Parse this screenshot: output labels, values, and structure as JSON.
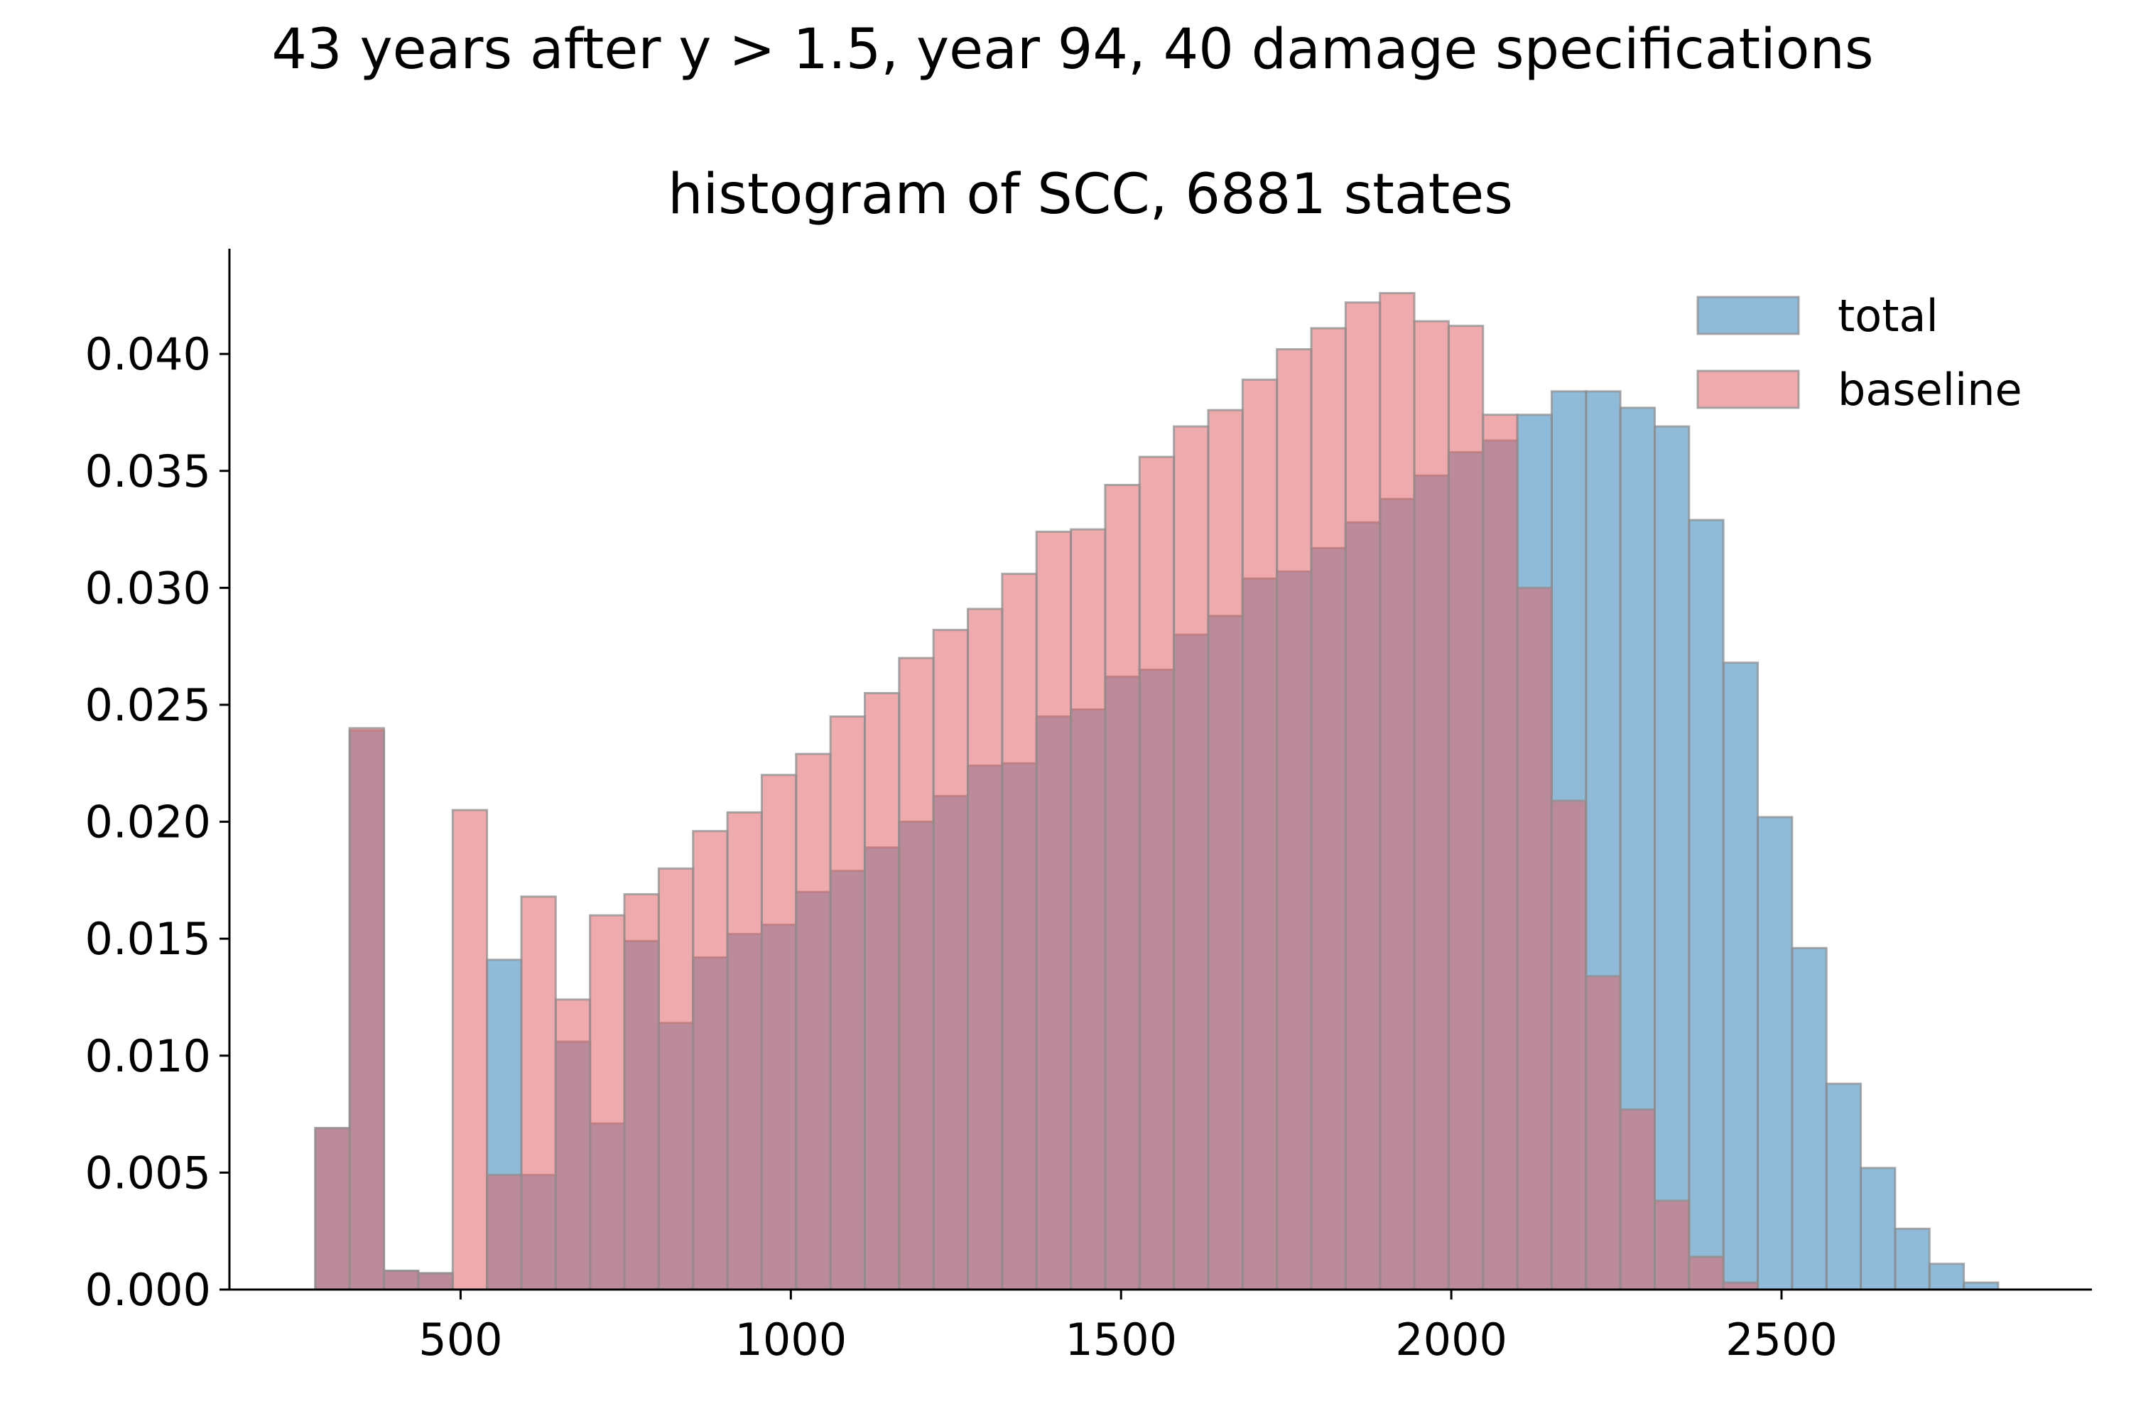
{
  "suptitle": "43 years after y > 1.5, year 94, 40 damage specifications",
  "chart_data": {
    "type": "histogram",
    "title": "histogram of SCC, 6881 states",
    "xlabel": "",
    "ylabel": "",
    "xlim": [
      150,
      2970
    ],
    "ylim": [
      0,
      0.0445
    ],
    "grid": false,
    "legend_position": "top-right",
    "x_ticks": [
      500,
      1000,
      1500,
      2000,
      2500
    ],
    "x_tick_labels": [
      "500",
      "1000",
      "1500",
      "2000",
      "2500"
    ],
    "y_ticks": [
      0,
      0.005,
      0.01,
      0.015,
      0.02,
      0.025,
      0.03,
      0.035,
      0.04
    ],
    "y_tick_labels": [
      "0.000",
      "0.005",
      "0.010",
      "0.015",
      "0.020",
      "0.025",
      "0.030",
      "0.035",
      "0.040"
    ],
    "series": [
      {
        "name": "total",
        "color": "#1f77b4",
        "opacity": 0.5,
        "bins": [
          [
            280,
            332,
            0.0069
          ],
          [
            332,
            384,
            0.0239
          ],
          [
            384,
            436,
            0.0008
          ],
          [
            436,
            488,
            0.0007
          ],
          [
            488,
            540,
            0.0
          ],
          [
            540,
            592,
            0.0141
          ],
          [
            592,
            644,
            0.0049
          ],
          [
            644,
            696,
            0.0106
          ],
          [
            696,
            748,
            0.0071
          ],
          [
            748,
            800,
            0.0149
          ],
          [
            800,
            852,
            0.0114
          ],
          [
            852,
            904,
            0.0142
          ],
          [
            904,
            956,
            0.0152
          ],
          [
            956,
            1008,
            0.0156
          ],
          [
            1008,
            1060,
            0.017
          ],
          [
            1060,
            1112,
            0.0179
          ],
          [
            1112,
            1164,
            0.0189
          ],
          [
            1164,
            1216,
            0.02
          ],
          [
            1216,
            1268,
            0.0211
          ],
          [
            1268,
            1320,
            0.0224
          ],
          [
            1320,
            1372,
            0.0225
          ],
          [
            1372,
            1424,
            0.0245
          ],
          [
            1424,
            1476,
            0.0248
          ],
          [
            1476,
            1528,
            0.0262
          ],
          [
            1528,
            1580,
            0.0265
          ],
          [
            1580,
            1632,
            0.028
          ],
          [
            1632,
            1684,
            0.0288
          ],
          [
            1684,
            1736,
            0.0304
          ],
          [
            1736,
            1788,
            0.0307
          ],
          [
            1788,
            1840,
            0.0317
          ],
          [
            1840,
            1892,
            0.0328
          ],
          [
            1892,
            1944,
            0.0338
          ],
          [
            1944,
            1996,
            0.0348
          ],
          [
            1996,
            2048,
            0.0358
          ],
          [
            2048,
            2100,
            0.0363
          ],
          [
            2100,
            2152,
            0.0374
          ],
          [
            2152,
            2204,
            0.0384
          ],
          [
            2204,
            2256,
            0.0384
          ],
          [
            2256,
            2308,
            0.0377
          ],
          [
            2308,
            2360,
            0.0369
          ],
          [
            2360,
            2412,
            0.0329
          ],
          [
            2412,
            2464,
            0.0268
          ],
          [
            2464,
            2516,
            0.0202
          ],
          [
            2516,
            2568,
            0.0146
          ],
          [
            2568,
            2620,
            0.0088
          ],
          [
            2620,
            2672,
            0.0052
          ],
          [
            2672,
            2724,
            0.0026
          ],
          [
            2724,
            2776,
            0.0011
          ],
          [
            2776,
            2828,
            0.0003
          ]
        ]
      },
      {
        "name": "baseline",
        "color": "#e06468",
        "opacity": 0.55,
        "bins": [
          [
            280,
            332,
            0.0069
          ],
          [
            332,
            384,
            0.024
          ],
          [
            384,
            436,
            0.0008
          ],
          [
            436,
            488,
            0.0007
          ],
          [
            488,
            540,
            0.0205
          ],
          [
            540,
            592,
            0.0049
          ],
          [
            592,
            644,
            0.0168
          ],
          [
            644,
            696,
            0.0124
          ],
          [
            696,
            748,
            0.016
          ],
          [
            748,
            800,
            0.0169
          ],
          [
            800,
            852,
            0.018
          ],
          [
            852,
            904,
            0.0196
          ],
          [
            904,
            956,
            0.0204
          ],
          [
            956,
            1008,
            0.022
          ],
          [
            1008,
            1060,
            0.0229
          ],
          [
            1060,
            1112,
            0.0245
          ],
          [
            1112,
            1164,
            0.0255
          ],
          [
            1164,
            1216,
            0.027
          ],
          [
            1216,
            1268,
            0.0282
          ],
          [
            1268,
            1320,
            0.0291
          ],
          [
            1320,
            1372,
            0.0306
          ],
          [
            1372,
            1424,
            0.0324
          ],
          [
            1424,
            1476,
            0.0325
          ],
          [
            1476,
            1528,
            0.0344
          ],
          [
            1528,
            1580,
            0.0356
          ],
          [
            1580,
            1632,
            0.0369
          ],
          [
            1632,
            1684,
            0.0376
          ],
          [
            1684,
            1736,
            0.0389
          ],
          [
            1736,
            1788,
            0.0402
          ],
          [
            1788,
            1840,
            0.0411
          ],
          [
            1840,
            1892,
            0.0422
          ],
          [
            1892,
            1944,
            0.0426
          ],
          [
            1944,
            1996,
            0.0414
          ],
          [
            1996,
            2048,
            0.0412
          ],
          [
            2048,
            2100,
            0.0374
          ],
          [
            2100,
            2152,
            0.03
          ],
          [
            2152,
            2204,
            0.0209
          ],
          [
            2204,
            2256,
            0.0134
          ],
          [
            2256,
            2308,
            0.0077
          ],
          [
            2308,
            2360,
            0.0038
          ],
          [
            2360,
            2412,
            0.0014
          ],
          [
            2412,
            2464,
            0.0003
          ]
        ]
      }
    ]
  }
}
